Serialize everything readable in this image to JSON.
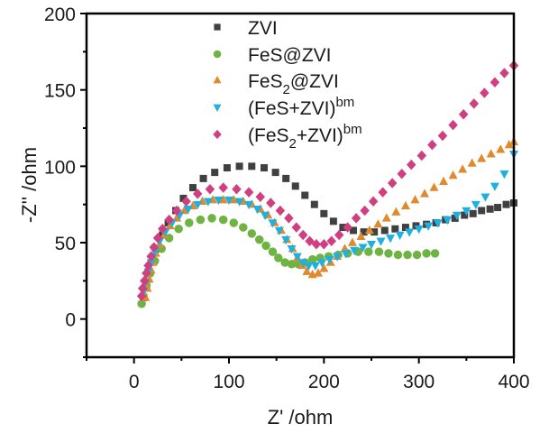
{
  "chart_data": {
    "type": "scatter",
    "title": "",
    "xlabel": "Z' /ohm",
    "ylabel": "-Z'' /ohm",
    "xlim": [
      -50,
      400
    ],
    "ylim": [
      -25,
      200
    ],
    "xticks": [
      0,
      100,
      200,
      300,
      400
    ],
    "yticks": [
      0,
      50,
      100,
      150,
      200
    ],
    "grid": false,
    "legend_position": "top-center",
    "series": [
      {
        "name": "ZVI",
        "label_main": "ZVI",
        "label_sub": "",
        "label_after": "",
        "label_sup": "",
        "marker": "square",
        "color": "#404040",
        "points": [
          [
            10,
            14
          ],
          [
            13,
            22
          ],
          [
            16,
            30
          ],
          [
            20,
            38
          ],
          [
            24,
            46
          ],
          [
            30,
            55
          ],
          [
            36,
            63
          ],
          [
            44,
            71
          ],
          [
            52,
            79
          ],
          [
            62,
            86
          ],
          [
            73,
            92
          ],
          [
            85,
            96
          ],
          [
            98,
            99
          ],
          [
            111,
            100
          ],
          [
            124,
            100
          ],
          [
            137,
            99
          ],
          [
            149,
            96
          ],
          [
            160,
            92
          ],
          [
            170,
            87
          ],
          [
            180,
            81
          ],
          [
            190,
            75
          ],
          [
            200,
            69
          ],
          [
            210,
            64
          ],
          [
            220,
            60
          ],
          [
            231,
            58
          ],
          [
            242,
            57
          ],
          [
            253,
            57
          ],
          [
            264,
            58
          ],
          [
            275,
            59
          ],
          [
            286,
            60
          ],
          [
            297,
            61
          ],
          [
            308,
            62
          ],
          [
            318,
            63
          ],
          [
            328,
            65
          ],
          [
            338,
            66
          ],
          [
            348,
            68
          ],
          [
            357,
            69
          ],
          [
            366,
            71
          ],
          [
            375,
            72
          ],
          [
            383,
            73
          ],
          [
            392,
            75
          ],
          [
            400,
            76
          ]
        ]
      },
      {
        "name": "FeS@ZVI",
        "label_main": "FeS@ZVI",
        "label_sub": "",
        "label_after": "",
        "label_sup": "",
        "marker": "circle",
        "color": "#6fb443",
        "points": [
          [
            8,
            10
          ],
          [
            10,
            15
          ],
          [
            13,
            22
          ],
          [
            17,
            30
          ],
          [
            22,
            38
          ],
          [
            29,
            46
          ],
          [
            37,
            53
          ],
          [
            47,
            59
          ],
          [
            58,
            63
          ],
          [
            70,
            65
          ],
          [
            82,
            66
          ],
          [
            94,
            65
          ],
          [
            105,
            63
          ],
          [
            115,
            60
          ],
          [
            124,
            56
          ],
          [
            132,
            52
          ],
          [
            139,
            48
          ],
          [
            146,
            44
          ],
          [
            152,
            40
          ],
          [
            159,
            37
          ],
          [
            166,
            36
          ],
          [
            173,
            36
          ],
          [
            180,
            37
          ],
          [
            188,
            39
          ],
          [
            196,
            40
          ],
          [
            205,
            41
          ],
          [
            215,
            42
          ],
          [
            225,
            43
          ],
          [
            236,
            44
          ],
          [
            247,
            44
          ],
          [
            258,
            44
          ],
          [
            268,
            43
          ],
          [
            278,
            42
          ],
          [
            288,
            42
          ],
          [
            298,
            42
          ],
          [
            308,
            43
          ],
          [
            317,
            43
          ]
        ]
      },
      {
        "name": "FeS2@ZVI",
        "label_main": "FeS",
        "label_sub": "2",
        "label_after": "@ZVI",
        "label_sup": "",
        "marker": "triangle-up",
        "color": "#e08a2e",
        "points": [
          [
            12,
            14
          ],
          [
            14,
            20
          ],
          [
            16,
            26
          ],
          [
            18,
            32
          ],
          [
            20,
            37
          ],
          [
            23,
            43
          ],
          [
            27,
            49
          ],
          [
            32,
            55
          ],
          [
            38,
            61
          ],
          [
            45,
            66
          ],
          [
            53,
            71
          ],
          [
            62,
            74
          ],
          [
            72,
            77
          ],
          [
            83,
            78
          ],
          [
            94,
            78
          ],
          [
            105,
            78
          ],
          [
            115,
            77
          ],
          [
            124,
            75
          ],
          [
            133,
            72
          ],
          [
            141,
            68
          ],
          [
            148,
            63
          ],
          [
            155,
            58
          ],
          [
            161,
            52
          ],
          [
            167,
            46
          ],
          [
            172,
            40
          ],
          [
            177,
            35
          ],
          [
            182,
            31
          ],
          [
            188,
            29
          ],
          [
            194,
            30
          ],
          [
            200,
            33
          ],
          [
            207,
            37
          ],
          [
            214,
            41
          ],
          [
            222,
            46
          ],
          [
            230,
            50
          ],
          [
            239,
            54
          ],
          [
            248,
            58
          ],
          [
            257,
            62
          ],
          [
            266,
            66
          ],
          [
            276,
            70
          ],
          [
            286,
            74
          ],
          [
            296,
            78
          ],
          [
            306,
            82
          ],
          [
            316,
            86
          ],
          [
            326,
            90
          ],
          [
            336,
            94
          ],
          [
            346,
            98
          ],
          [
            356,
            102
          ],
          [
            366,
            105
          ],
          [
            376,
            108
          ],
          [
            386,
            111
          ],
          [
            395,
            114
          ],
          [
            400,
            116
          ]
        ]
      },
      {
        "name": "(FeS+ZVI)bm",
        "label_main": "(FeS+ZVI)",
        "label_sub": "",
        "label_after": "",
        "label_sup": "bm",
        "marker": "triangle-down",
        "color": "#20b0e0",
        "points": [
          [
            10,
            18
          ],
          [
            12,
            24
          ],
          [
            15,
            31
          ],
          [
            18,
            37
          ],
          [
            22,
            44
          ],
          [
            27,
            51
          ],
          [
            33,
            57
          ],
          [
            40,
            63
          ],
          [
            48,
            68
          ],
          [
            57,
            72
          ],
          [
            67,
            75
          ],
          [
            78,
            77
          ],
          [
            89,
            78
          ],
          [
            100,
            78
          ],
          [
            111,
            77
          ],
          [
            121,
            75
          ],
          [
            130,
            72
          ],
          [
            138,
            68
          ],
          [
            146,
            63
          ],
          [
            153,
            58
          ],
          [
            160,
            52
          ],
          [
            166,
            46
          ],
          [
            172,
            41
          ],
          [
            178,
            37
          ],
          [
            184,
            35
          ],
          [
            191,
            35
          ],
          [
            198,
            37
          ],
          [
            206,
            39
          ],
          [
            214,
            41
          ],
          [
            223,
            43
          ],
          [
            232,
            45
          ],
          [
            241,
            47
          ],
          [
            250,
            49
          ],
          [
            260,
            51
          ],
          [
            270,
            53
          ],
          [
            280,
            55
          ],
          [
            290,
            57
          ],
          [
            300,
            59
          ],
          [
            310,
            61
          ],
          [
            320,
            63
          ],
          [
            330,
            65
          ],
          [
            340,
            68
          ],
          [
            350,
            71
          ],
          [
            360,
            75
          ],
          [
            370,
            80
          ],
          [
            380,
            87
          ],
          [
            390,
            95
          ],
          [
            400,
            108
          ]
        ]
      },
      {
        "name": "(FeS2+ZVI)bm",
        "label_main": "(FeS",
        "label_sub": "2",
        "label_after": "+ZVI)",
        "label_sup": "bm",
        "marker": "diamond",
        "color": "#d04080",
        "points": [
          [
            8,
            15
          ],
          [
            9,
            20
          ],
          [
            11,
            25
          ],
          [
            13,
            30
          ],
          [
            15,
            35
          ],
          [
            18,
            41
          ],
          [
            21,
            47
          ],
          [
            25,
            53
          ],
          [
            30,
            59
          ],
          [
            37,
            65
          ],
          [
            45,
            71
          ],
          [
            55,
            77
          ],
          [
            67,
            82
          ],
          [
            80,
            85
          ],
          [
            94,
            86
          ],
          [
            108,
            85
          ],
          [
            121,
            83
          ],
          [
            133,
            80
          ],
          [
            144,
            76
          ],
          [
            154,
            71
          ],
          [
            163,
            66
          ],
          [
            171,
            60
          ],
          [
            178,
            55
          ],
          [
            185,
            51
          ],
          [
            192,
            49
          ],
          [
            200,
            49
          ],
          [
            208,
            51
          ],
          [
            216,
            55
          ],
          [
            225,
            60
          ],
          [
            234,
            66
          ],
          [
            243,
            71
          ],
          [
            252,
            77
          ],
          [
            262,
            83
          ],
          [
            272,
            89
          ],
          [
            282,
            95
          ],
          [
            292,
            101
          ],
          [
            303,
            107
          ],
          [
            314,
            114
          ],
          [
            325,
            120
          ],
          [
            336,
            127
          ],
          [
            347,
            134
          ],
          [
            358,
            141
          ],
          [
            369,
            148
          ],
          [
            380,
            155
          ],
          [
            390,
            161
          ],
          [
            400,
            166
          ]
        ]
      }
    ]
  }
}
